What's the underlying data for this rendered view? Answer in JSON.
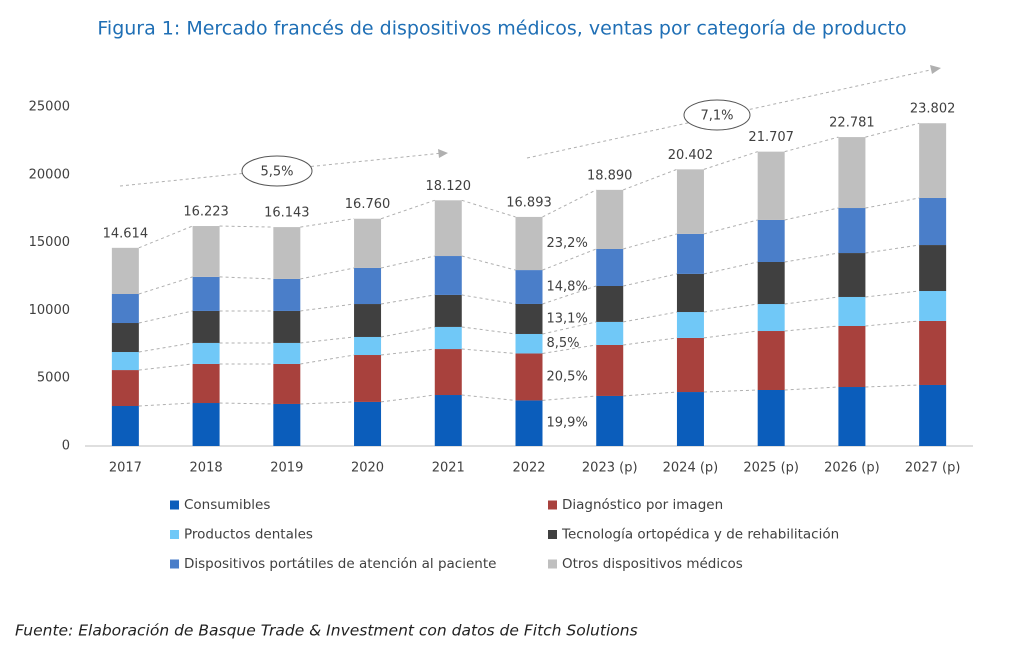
{
  "chart_data": {
    "type": "stacked_bar",
    "title": "Figura 1: Mercado francés de dispositivos médicos, ventas por categoría de producto",
    "categories": [
      "2017",
      "2018",
      "2019",
      "2020",
      "2021",
      "2022",
      "2023 (p)",
      "2024 (p)",
      "2025 (p)",
      "2026 (p)",
      "2027 (p)"
    ],
    "series": [
      {
        "name": "Consumibles",
        "color": "#0b5dbb",
        "values": [
          2950,
          3170,
          3100,
          3250,
          3760,
          3362,
          3690,
          3980,
          4130,
          4350,
          4500
        ]
      },
      {
        "name": "Diagnóstico por imagen",
        "color": "#a8413d",
        "values": [
          2650,
          2880,
          2950,
          3460,
          3390,
          3463,
          3760,
          3990,
          4350,
          4500,
          4720
        ]
      },
      {
        "name": "Productos dentales",
        "color": "#70c8f7",
        "values": [
          1330,
          1550,
          1550,
          1330,
          1630,
          1436,
          1700,
          1910,
          1990,
          2140,
          2210
        ]
      },
      {
        "name": "Tecnología ortopédica y de rehabilitación",
        "color": "#404040",
        "values": [
          2140,
          2360,
          2360,
          2430,
          2360,
          2213,
          2650,
          2810,
          3100,
          3240,
          3390
        ]
      },
      {
        "name": "Dispositivos portátiles de atención al paciente",
        "color": "#4a7ec9",
        "values": [
          2140,
          2510,
          2360,
          2660,
          2870,
          2500,
          2730,
          2950,
          3100,
          3320,
          3470
        ]
      },
      {
        "name": "Otros dispositivos médicos",
        "color": "#bfbfbf",
        "values": [
          3404,
          3753,
          3823,
          3630,
          4110,
          3919,
          4360,
          4762,
          5037,
          5231,
          5512
        ]
      }
    ],
    "totals": {
      "values": [
        14614,
        16223,
        16143,
        16760,
        18120,
        16893,
        18890,
        20402,
        21707,
        22781,
        23802
      ],
      "value_labels": [
        "14.614",
        "16.223",
        "16.143",
        "16.760",
        "18.120",
        "16.893",
        "18.890",
        "20.402",
        "21.707",
        "22.781",
        "23.802"
      ]
    },
    "annotations": {
      "shares": [
        "19,9%",
        "20,5%",
        "8,5%",
        "13,1%",
        "14,8%",
        "23,2%"
      ],
      "cagr": [
        "5,5%",
        "7,1%"
      ]
    },
    "ylim": [
      0,
      25000
    ],
    "yticks": [
      0,
      5000,
      10000,
      15000,
      20000,
      25000
    ],
    "grid": false,
    "source": "Fuente: Elaboración de Basque Trade & Investment con datos de Fitch Solutions"
  }
}
